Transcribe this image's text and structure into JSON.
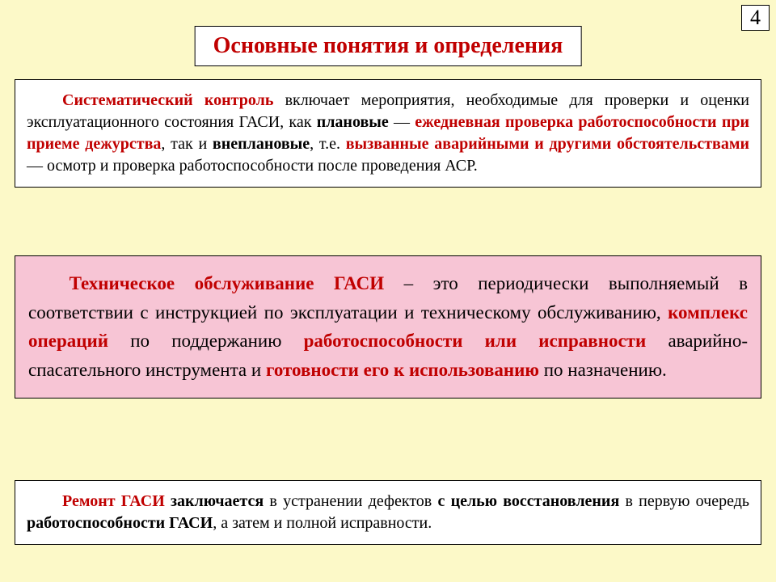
{
  "page_number": "4",
  "title": "Основные понятия и определения",
  "box1": {
    "p1_lead": "Систематический контроль",
    "p1_a": " включает мероприятия, необходимые для проверки и оценки эксплуатационного состояния ГАСИ, как ",
    "p1_plan": "плановые",
    "p1_dash1": " — ",
    "p1_red1": "ежедневная проверка работоспособности при приеме дежурства",
    "p1_b": ", так и ",
    "p1_vneplan": "внеплановые",
    "p1_c": ", т.е. ",
    "p1_red2": "вызванные аварийными и другими обстоятельствами",
    "p1_dash2": " — осмотр и проверка работоспособности после проведения АСР."
  },
  "box2": {
    "lead": "Техническое обслуживание ГАСИ",
    "a": " – это периодически выполняемый в соответствии с инструкцией по эксплуатации и техническому обслуживанию, ",
    "komplex": "комплекс операций",
    "b": " по поддержанию ",
    "rabot": "работоспособности или исправности",
    "c": " аварийно-спасательного инструмента и ",
    "gotov": "готовности его к использованию",
    "d": " по назначению."
  },
  "box3": {
    "lead": "Ремонт ГАСИ",
    "a": " заключается",
    "b": " в устранении дефектов ",
    "goal": "с целью восстановления",
    "c": " в первую очередь ",
    "rabot": "работоспособности ГАСИ",
    "d": ", а затем и полной исправности."
  },
  "colors": {
    "bg": "#fcf9c8",
    "box_white": "#ffffff",
    "box_pink": "#f7c5d5",
    "accent": "#c00000",
    "border": "#000000"
  },
  "fonts": {
    "family": "Times New Roman",
    "title_size": 28,
    "body1_size": 20,
    "body2_size": 23,
    "page_num_size": 26
  }
}
